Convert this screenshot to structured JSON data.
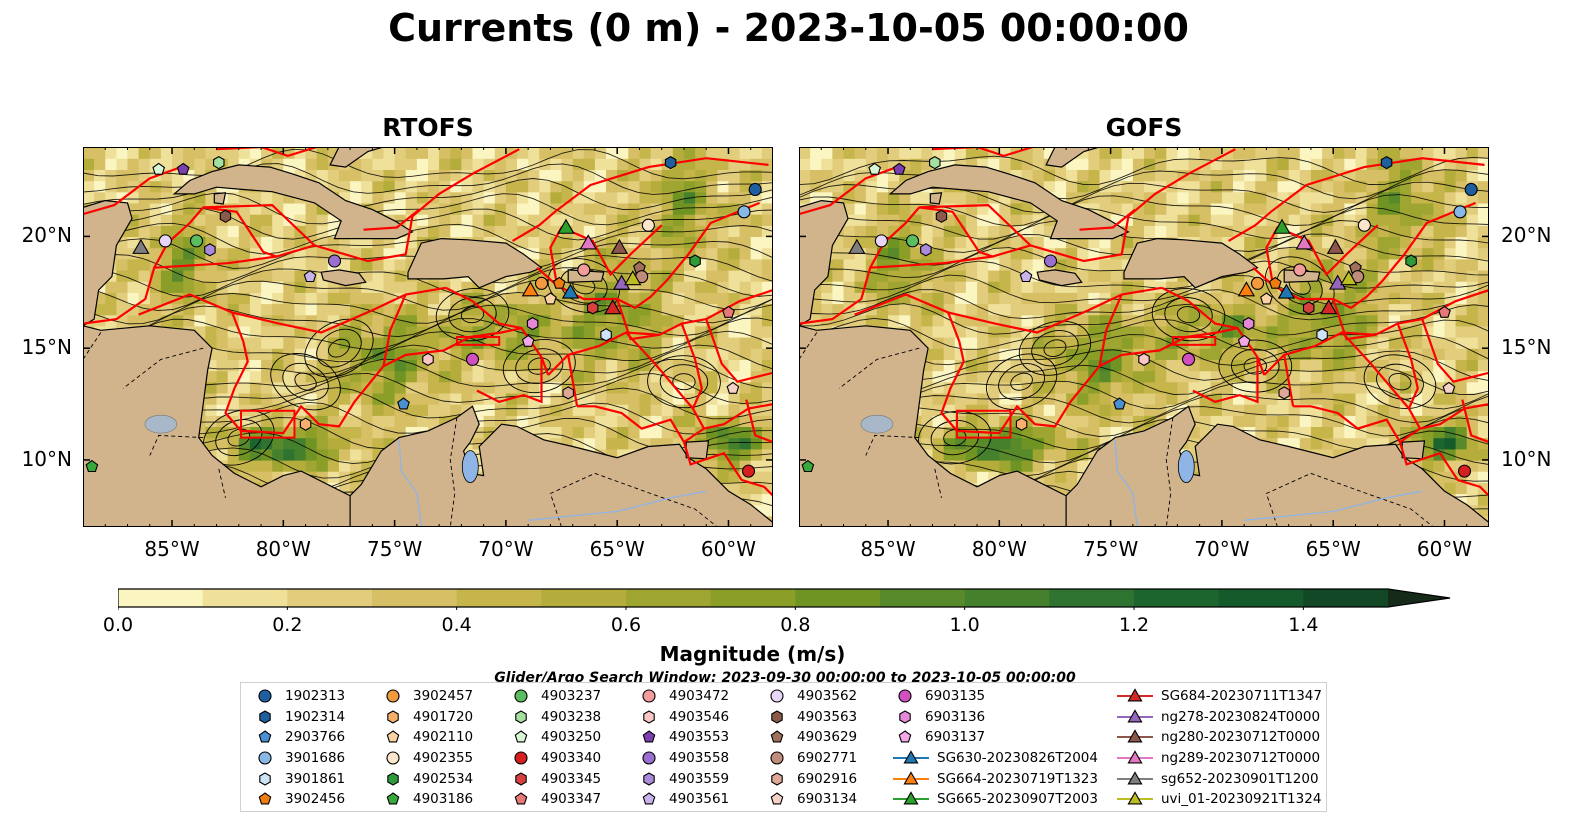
{
  "title": "Currents (0 m) - 2023-10-05 00:00:00",
  "panels": [
    {
      "title": "RTOFS",
      "name": "rtofs"
    },
    {
      "title": "GOFS",
      "name": "gofs"
    }
  ],
  "map": {
    "lon_range": [
      -89,
      -58
    ],
    "lat_range": [
      7,
      24
    ],
    "lon_ticks": [
      {
        "value": -85,
        "label": "85°W"
      },
      {
        "value": -80,
        "label": "80°W"
      },
      {
        "value": -75,
        "label": "75°W"
      },
      {
        "value": -70,
        "label": "70°W"
      },
      {
        "value": -65,
        "label": "65°W"
      },
      {
        "value": -60,
        "label": "60°W"
      }
    ],
    "lat_ticks": [
      {
        "value": 10,
        "label": "10°N"
      },
      {
        "value": 15,
        "label": "15°N"
      },
      {
        "value": 20,
        "label": "20°N"
      }
    ],
    "colors": {
      "land": "#d2b48c",
      "eez_lines": "#ff0000",
      "streamlines": "#000000",
      "lakes": "#8fb4e6"
    }
  },
  "colorbar": {
    "title": "Magnitude (m/s)",
    "min": 0.0,
    "max": 1.5,
    "extend": "max",
    "ticks": [
      "0.0",
      "0.2",
      "0.4",
      "0.6",
      "0.8",
      "1.0",
      "1.2",
      "1.4"
    ],
    "tick_values": [
      0.0,
      0.2,
      0.4,
      0.6,
      0.8,
      1.0,
      1.2,
      1.4
    ],
    "colors": [
      "#fbf5c2",
      "#efe09a",
      "#e2cd7c",
      "#d6bf64",
      "#c6b54a",
      "#b4ad3c",
      "#9fa531",
      "#8a9e28",
      "#6f9424",
      "#58892b",
      "#45802c",
      "#2f7330",
      "#1c652e",
      "#155a2a",
      "#134826",
      "#13351d",
      "#162a19"
    ]
  },
  "search_window": "Glider/Argo Search Window: 2023-09-30 00:00:00 to 2023-10-05 00:00:00",
  "legend": [
    {
      "label": "1902313",
      "marker": "circle",
      "color": "#1f5fa0",
      "lon": -58.8,
      "lat": 22.1
    },
    {
      "label": "1902314",
      "marker": "hexagon",
      "color": "#1f5fa0",
      "lon": -62.6,
      "lat": 23.3
    },
    {
      "label": "2903766",
      "marker": "pentagon",
      "color": "#4a90d0",
      "lon": -74.6,
      "lat": 12.5
    },
    {
      "label": "3901686",
      "marker": "circle",
      "color": "#87b8e6",
      "lon": -59.3,
      "lat": 21.1
    },
    {
      "label": "3901861",
      "marker": "hexagon",
      "color": "#cfe3f7",
      "lon": -65.5,
      "lat": 15.6
    },
    {
      "label": "3902456",
      "marker": "pentagon",
      "color": "#f07c10",
      "lon": -67.6,
      "lat": 17.9
    },
    {
      "label": "3902457",
      "marker": "circle",
      "color": "#f39a40",
      "lon": -68.4,
      "lat": 17.9
    },
    {
      "label": "4901720",
      "marker": "hexagon",
      "color": "#f7b06c",
      "lon": -79.0,
      "lat": 11.6
    },
    {
      "label": "4902110",
      "marker": "pentagon",
      "color": "#fbd2a4",
      "lon": -68.0,
      "lat": 17.2
    },
    {
      "label": "4902355",
      "marker": "circle",
      "color": "#fde6cc",
      "lon": -63.6,
      "lat": 20.5
    },
    {
      "label": "4902534",
      "marker": "hexagon",
      "color": "#2f9a3a",
      "lon": -61.5,
      "lat": 18.9
    },
    {
      "label": "4903186",
      "marker": "pentagon",
      "color": "#39a83c",
      "lon": -88.6,
      "lat": 9.7
    },
    {
      "label": "4903237",
      "marker": "circle",
      "color": "#5cbc60",
      "lon": -83.9,
      "lat": 19.8
    },
    {
      "label": "4903238",
      "marker": "hexagon",
      "color": "#a4e0a0",
      "lon": -82.9,
      "lat": 23.3
    },
    {
      "label": "4903250",
      "marker": "pentagon",
      "color": "#d8f6d4",
      "lon": -85.6,
      "lat": 23.0
    },
    {
      "label": "4903340",
      "marker": "circle",
      "color": "#d62020",
      "lon": -59.1,
      "lat": 9.5
    },
    {
      "label": "4903345",
      "marker": "hexagon",
      "color": "#d84040",
      "lon": -66.1,
      "lat": 16.8
    },
    {
      "label": "4903347",
      "marker": "pentagon",
      "color": "#e87878",
      "lon": -60.0,
      "lat": 16.6
    },
    {
      "label": "4903472",
      "marker": "circle",
      "color": "#f39c9c",
      "lon": -66.5,
      "lat": 18.5
    },
    {
      "label": "4903546",
      "marker": "hexagon",
      "color": "#fbc6c6",
      "lon": -73.5,
      "lat": 14.5
    },
    {
      "label": "4903553",
      "marker": "pentagon",
      "color": "#7b3fb0",
      "lon": -84.5,
      "lat": 23.0
    },
    {
      "label": "4903558",
      "marker": "circle",
      "color": "#9a6fd0",
      "lon": -77.7,
      "lat": 18.9
    },
    {
      "label": "4903559",
      "marker": "hexagon",
      "color": "#a98adb",
      "lon": -83.3,
      "lat": 19.4
    },
    {
      "label": "4903561",
      "marker": "pentagon",
      "color": "#c9b3ec",
      "lon": -78.8,
      "lat": 18.2
    },
    {
      "label": "4903562",
      "marker": "circle",
      "color": "#e8d6f8",
      "lon": -85.3,
      "lat": 19.8
    },
    {
      "label": "4903563",
      "marker": "hexagon",
      "color": "#8b5a48",
      "lon": -82.6,
      "lat": 20.9
    },
    {
      "label": "4903629",
      "marker": "pentagon",
      "color": "#a0705c",
      "lon": -64.0,
      "lat": 18.6
    },
    {
      "label": "6902771",
      "marker": "circle",
      "color": "#c08c7c",
      "lon": -63.9,
      "lat": 18.2
    },
    {
      "label": "6902916",
      "marker": "hexagon",
      "color": "#dfa896",
      "lon": -67.2,
      "lat": 13.0
    },
    {
      "label": "6903134",
      "marker": "pentagon",
      "color": "#f5d2c8",
      "lon": -59.8,
      "lat": 13.2
    },
    {
      "label": "6903135",
      "marker": "circle",
      "color": "#d050c0",
      "lon": -71.5,
      "lat": 14.5
    },
    {
      "label": "6903136",
      "marker": "hexagon",
      "color": "#e688d8",
      "lon": -68.8,
      "lat": 16.1
    },
    {
      "label": "6903137",
      "marker": "pentagon",
      "color": "#f2a8e4",
      "lon": -69.0,
      "lat": 15.3
    },
    {
      "label": "SG630-20230826T2004",
      "marker": "triangle",
      "color": "#1f77b4",
      "lon": -67.1,
      "lat": 17.5
    },
    {
      "label": "SG664-20230719T1323",
      "marker": "triangle",
      "color": "#ff7f0e",
      "lon": -68.9,
      "lat": 17.6
    },
    {
      "label": "SG665-20230907T2003",
      "marker": "triangle",
      "color": "#2ca02c",
      "lon": -67.3,
      "lat": 20.4
    },
    {
      "label": "SG684-20230711T1347",
      "marker": "triangle",
      "color": "#d62728",
      "lon": -65.2,
      "lat": 16.8
    },
    {
      "label": "ng278-20230824T0000",
      "marker": "triangle",
      "color": "#9467bd",
      "lon": -64.8,
      "lat": 17.9
    },
    {
      "label": "ng280-20230712T0000",
      "marker": "triangle",
      "color": "#8c564b",
      "lon": -64.9,
      "lat": 19.5
    },
    {
      "label": "ng289-20230712T0000",
      "marker": "triangle",
      "color": "#e377c2",
      "lon": -66.3,
      "lat": 19.7
    },
    {
      "label": "sg652-20230901T1200",
      "marker": "triangle",
      "color": "#7f7f7f",
      "lon": -86.4,
      "lat": 19.5
    },
    {
      "label": "uvi_01-20230921T1324",
      "marker": "triangle",
      "color": "#bcbd22",
      "lon": -64.3,
      "lat": 18.1
    }
  ]
}
